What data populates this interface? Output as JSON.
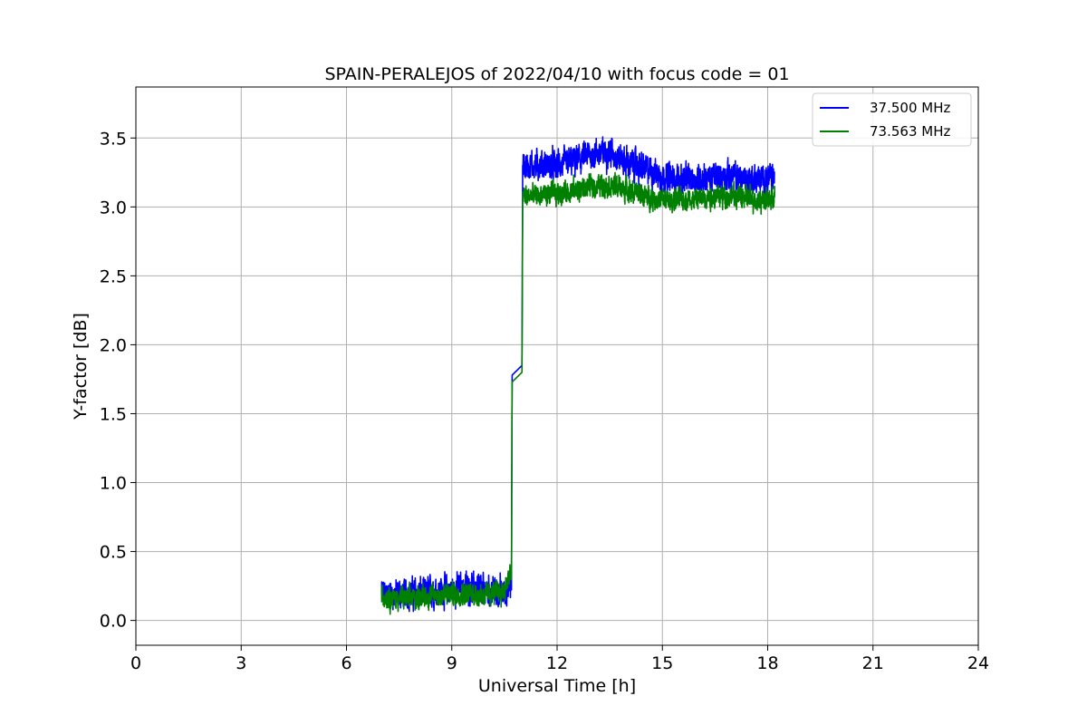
{
  "chart_data": {
    "type": "line",
    "title": "SPAIN-PERALEJOS of 2022/04/10 with focus code = 01",
    "xlabel": "Universal Time [h]",
    "ylabel": "Y-factor [dB]",
    "xlim": [
      0,
      24
    ],
    "ylim": [
      -0.18,
      3.87
    ],
    "xticks": [
      "0",
      "3",
      "6",
      "9",
      "12",
      "15",
      "18",
      "21",
      "24"
    ],
    "yticks": [
      "0.0",
      "0.5",
      "1.0",
      "1.5",
      "2.0",
      "2.5",
      "3.0",
      "3.5"
    ],
    "grid": true,
    "legend_position": "upper right",
    "colors": {
      "series_1": "#0000ff",
      "series_2": "#008000",
      "grid": "#b0b0b0"
    },
    "series": [
      {
        "name": "37.500 MHz",
        "color": "#0000ff",
        "x": [
          7.0,
          7.5,
          8.0,
          8.5,
          9.0,
          9.5,
          10.0,
          10.5,
          10.7,
          10.72,
          11.0,
          11.02,
          11.5,
          12.0,
          12.5,
          13.0,
          13.5,
          14.0,
          14.5,
          15.0,
          15.5,
          16.0,
          16.5,
          17.0,
          17.5,
          18.0,
          18.2
        ],
        "values": [
          0.2,
          0.19,
          0.2,
          0.21,
          0.23,
          0.24,
          0.22,
          0.2,
          0.25,
          1.78,
          1.85,
          3.3,
          3.3,
          3.3,
          3.33,
          3.38,
          3.4,
          3.32,
          3.28,
          3.22,
          3.2,
          3.2,
          3.22,
          3.22,
          3.2,
          3.2,
          3.22
        ],
        "noise_band": 0.18
      },
      {
        "name": "73.563 MHz",
        "color": "#008000",
        "x": [
          7.0,
          7.5,
          8.0,
          8.5,
          9.0,
          9.5,
          10.0,
          10.5,
          10.7,
          10.72,
          11.0,
          11.02,
          11.5,
          12.0,
          12.5,
          13.0,
          13.5,
          14.0,
          14.5,
          15.0,
          15.5,
          16.0,
          16.5,
          17.0,
          17.5,
          18.0,
          18.2
        ],
        "values": [
          0.18,
          0.16,
          0.17,
          0.18,
          0.19,
          0.2,
          0.18,
          0.22,
          0.35,
          1.73,
          1.8,
          3.08,
          3.08,
          3.1,
          3.12,
          3.15,
          3.16,
          3.12,
          3.08,
          3.05,
          3.05,
          3.06,
          3.08,
          3.08,
          3.06,
          3.05,
          3.07
        ],
        "noise_band": 0.14
      }
    ]
  }
}
